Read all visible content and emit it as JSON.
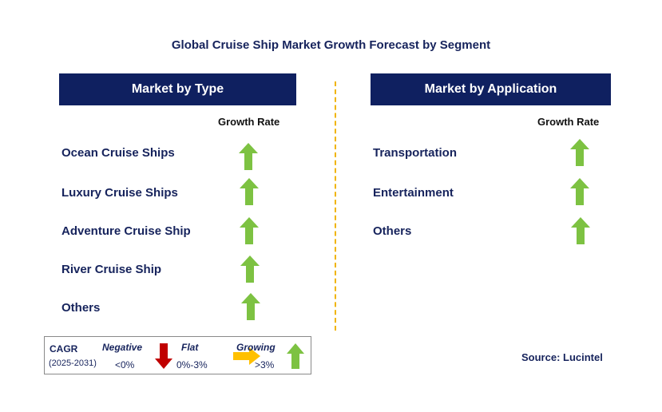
{
  "title": "Global Cruise Ship Market Growth Forecast by Segment",
  "left_panel": {
    "header": "Market by Type",
    "growth_label": "Growth Rate",
    "items": [
      {
        "label": "Ocean Cruise Ships",
        "trend": "growing"
      },
      {
        "label": "Luxury Cruise Ships",
        "trend": "growing"
      },
      {
        "label": "Adventure Cruise Ship",
        "trend": "growing"
      },
      {
        "label": "River Cruise Ship",
        "trend": "growing"
      },
      {
        "label": "Others",
        "trend": "growing"
      }
    ]
  },
  "right_panel": {
    "header": "Market by Application",
    "growth_label": "Growth Rate",
    "items": [
      {
        "label": "Transportation",
        "trend": "growing"
      },
      {
        "label": "Entertainment",
        "trend": "growing"
      },
      {
        "label": "Others",
        "trend": "growing"
      }
    ]
  },
  "legend": {
    "cagr_label": "CAGR",
    "period": "(2025-2031)",
    "negative_label": "Negative",
    "negative_range": "<0%",
    "flat_label": "Flat",
    "flat_range": "0%-3%",
    "growing_label": "Growing",
    "growing_range": ">3%"
  },
  "source": "Source: Lucintel",
  "colors": {
    "header_bg": "#0f2060",
    "growing_arrow": "#7dc242",
    "negative_arrow": "#c00000",
    "flat_arrow": "#ffc000",
    "divider": "#f0b400"
  },
  "icons": {
    "growing": "up-arrow-icon",
    "negative": "down-arrow-icon",
    "flat": "right-arrow-icon"
  }
}
